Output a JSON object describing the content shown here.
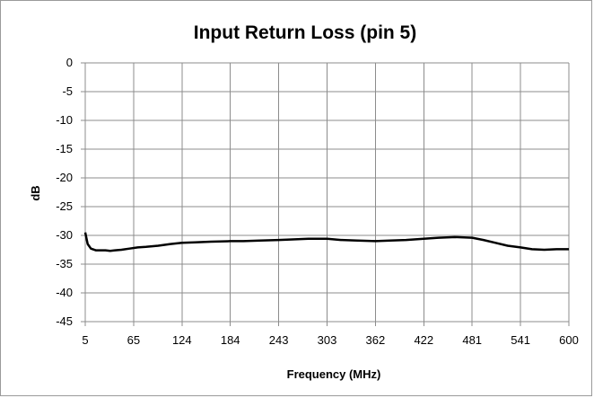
{
  "chart_data": {
    "type": "line",
    "title": "Input Return Loss (pin 5)",
    "xlabel": "Frequency (MHz)",
    "ylabel": "dB",
    "xlim": [
      5,
      600
    ],
    "ylim": [
      -45,
      0
    ],
    "x_ticks": [
      "5",
      "65",
      "124",
      "184",
      "243",
      "303",
      "362",
      "422",
      "481",
      "541",
      "600"
    ],
    "y_ticks": [
      "0",
      "-5",
      "-10",
      "-15",
      "-20",
      "-25",
      "-30",
      "-35",
      "-40",
      "-45"
    ],
    "grid": true,
    "legend": "none",
    "line_color": "#000000",
    "series": [
      {
        "x": [
          5,
          8,
          12,
          18,
          24,
          30,
          36,
          42,
          50,
          60,
          70,
          80,
          95,
          110,
          124,
          140,
          160,
          184,
          200,
          220,
          243,
          260,
          280,
          303,
          320,
          340,
          362,
          380,
          400,
          422,
          440,
          460,
          481,
          495,
          510,
          525,
          541,
          555,
          570,
          585,
          600
        ],
        "y": [
          -29.5,
          -31.5,
          -32.3,
          -32.6,
          -32.6,
          -32.6,
          -32.7,
          -32.6,
          -32.5,
          -32.3,
          -32.1,
          -32.0,
          -31.8,
          -31.5,
          -31.3,
          -31.2,
          -31.1,
          -31.0,
          -31.0,
          -30.9,
          -30.8,
          -30.7,
          -30.6,
          -30.6,
          -30.8,
          -30.9,
          -31.0,
          -30.9,
          -30.8,
          -30.6,
          -30.4,
          -30.3,
          -30.4,
          -30.8,
          -31.3,
          -31.8,
          -32.1,
          -32.4,
          -32.5,
          -32.4,
          -32.4
        ]
      }
    ]
  }
}
